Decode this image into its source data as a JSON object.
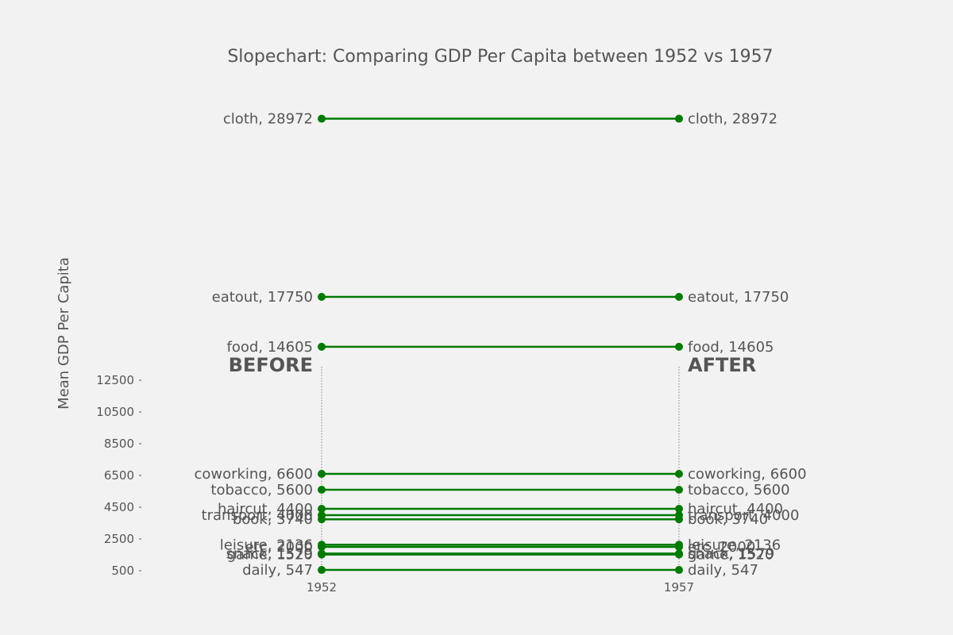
{
  "chart_data": {
    "type": "line",
    "title": "Slopechart: Comparing GDP Per Capita between 1952 vs 1957",
    "ylabel": "Mean GDP Per Capita",
    "xlabel": "",
    "x_ticks": [
      "1952",
      "1957"
    ],
    "y_ticks": [
      500,
      2500,
      4500,
      6500,
      8500,
      10500,
      12500
    ],
    "ylim": [
      0,
      30000
    ],
    "headers": {
      "before": "BEFORE",
      "after": "AFTER"
    },
    "line_color": "#007a00",
    "guide_color": "#888888",
    "series": [
      {
        "name": "cloth",
        "values": [
          28972,
          28972
        ]
      },
      {
        "name": "eatout",
        "values": [
          17750,
          17750
        ]
      },
      {
        "name": "food",
        "values": [
          14605,
          14605
        ]
      },
      {
        "name": "coworking",
        "values": [
          6600,
          6600
        ]
      },
      {
        "name": "tobacco",
        "values": [
          5600,
          5600
        ]
      },
      {
        "name": "haircut",
        "values": [
          4400,
          4400
        ]
      },
      {
        "name": "transport",
        "values": [
          4000,
          4000
        ]
      },
      {
        "name": "book",
        "values": [
          3740,
          3740
        ]
      },
      {
        "name": "leisure",
        "values": [
          2136,
          2136
        ]
      },
      {
        "name": "etc",
        "values": [
          2000,
          2000
        ]
      },
      {
        "name": "snack",
        "values": [
          1579,
          1579
        ]
      },
      {
        "name": "game",
        "values": [
          1520,
          1520
        ]
      },
      {
        "name": "daily",
        "values": [
          547,
          547
        ]
      }
    ]
  }
}
